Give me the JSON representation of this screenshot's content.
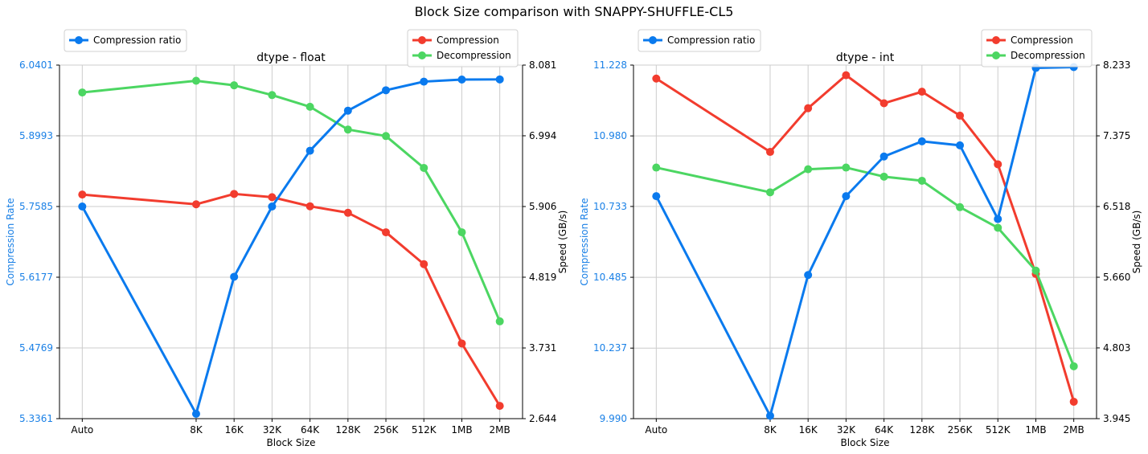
{
  "suptitle": "Block Size comparison with SNAPPY-SHUFFLE-CL5",
  "colors": {
    "ratio": "#0a7aee",
    "ratio_axis": "#1a80e6",
    "compression": "#f23c2e",
    "decompression": "#4cd662",
    "grid": "#cccccc"
  },
  "chart_data": [
    {
      "type": "line",
      "title": "dtype - float",
      "xlabel": "Block Size",
      "ylabel_left": "Compression Rate",
      "ylabel_right": "Speed (GB/s)",
      "categories": [
        "Auto",
        "8K",
        "16K",
        "32K",
        "64K",
        "128K",
        "256K",
        "512K",
        "1MB",
        "2MB"
      ],
      "x_positions": [
        0,
        3,
        4,
        5,
        6,
        7,
        8,
        9,
        10,
        11
      ],
      "ylim_left": [
        5.3361,
        6.0401
      ],
      "yticks_left": [
        "5.3361",
        "5.4769",
        "5.6177",
        "5.7585",
        "5.8993",
        "6.0401"
      ],
      "ylim_right": [
        2.644,
        8.081
      ],
      "yticks_right": [
        "2.644",
        "3.731",
        "4.819",
        "5.906",
        "6.994",
        "8.081"
      ],
      "grid": true,
      "series": [
        {
          "name": "Compression ratio",
          "axis": "left",
          "color_key": "ratio",
          "values": [
            5.7585,
            5.3457,
            5.6186,
            5.7585,
            5.8696,
            5.9494,
            5.99,
            6.0072,
            6.0113,
            6.0116
          ]
        },
        {
          "name": "Compression",
          "axis": "right",
          "color_key": "compression",
          "values": [
            6.09,
            5.94,
            6.1,
            6.05,
            5.91,
            5.81,
            5.51,
            5.02,
            3.8,
            2.84
          ]
        },
        {
          "name": "Decompression",
          "axis": "right",
          "color_key": "decompression",
          "values": [
            7.66,
            7.84,
            7.77,
            7.62,
            7.44,
            7.09,
            6.99,
            6.5,
            5.51,
            4.14
          ]
        }
      ],
      "legend_left": [
        "Compression ratio"
      ],
      "legend_right": [
        "Compression",
        "Decompression"
      ]
    },
    {
      "type": "line",
      "title": "dtype - int",
      "xlabel": "Block Size",
      "ylabel_left": "Compression Rate",
      "ylabel_right": "Speed (GB/s)",
      "categories": [
        "Auto",
        "8K",
        "16K",
        "32K",
        "64K",
        "128K",
        "256K",
        "512K",
        "1MB",
        "2MB"
      ],
      "x_positions": [
        0,
        3,
        4,
        5,
        6,
        7,
        8,
        9,
        10,
        11
      ],
      "ylim_left": [
        9.99,
        11.228
      ],
      "yticks_left": [
        "9.990",
        "10.237",
        "10.485",
        "10.733",
        "10.980",
        "11.228"
      ],
      "ylim_right": [
        3.945,
        8.233
      ],
      "yticks_right": [
        "3.945",
        "4.803",
        "5.660",
        "6.518",
        "7.375",
        "8.233"
      ],
      "grid": true,
      "series": [
        {
          "name": "Compression ratio",
          "axis": "left",
          "color_key": "ratio",
          "values": [
            10.769,
            10.0,
            10.493,
            10.769,
            10.908,
            10.961,
            10.947,
            10.689,
            11.218,
            11.221
          ]
        },
        {
          "name": "Compression",
          "axis": "right",
          "color_key": "compression",
          "values": [
            8.07,
            7.18,
            7.71,
            8.11,
            7.77,
            7.91,
            7.62,
            7.03,
            5.7,
            4.15
          ]
        },
        {
          "name": "Decompression",
          "axis": "right",
          "color_key": "decompression",
          "values": [
            6.99,
            6.69,
            6.97,
            6.99,
            6.88,
            6.83,
            6.51,
            6.26,
            5.74,
            4.58
          ]
        }
      ],
      "legend_left": [
        "Compression ratio"
      ],
      "legend_right": [
        "Compression",
        "Decompression"
      ]
    }
  ]
}
